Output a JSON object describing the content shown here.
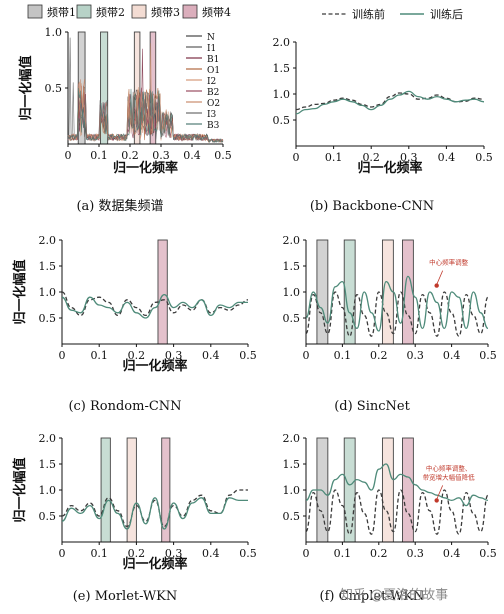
{
  "figure": {
    "watermark": "知乎 @夏洛的故事"
  },
  "legends": {
    "bands": [
      "频带1",
      "频带2",
      "频带3",
      "频带4"
    ],
    "training": [
      "训练前",
      "训练后"
    ],
    "dataset": [
      "N",
      "I1",
      "B1",
      "O1",
      "I2",
      "B2",
      "O2",
      "I3",
      "B3"
    ]
  },
  "colors": {
    "band1": "#8a8a8a",
    "band2": "#6fa58f",
    "band3": "#e8b9a7",
    "band4": "#b75d7a",
    "before": "#3b3b3b",
    "after": "#4f8b7a",
    "annotation": "#c0392b"
  },
  "chart_data": [
    {
      "type": "area",
      "id": "a",
      "caption": "(a) 数据集频谱",
      "xlabel": "归一化频率",
      "ylabel": "归一化幅值",
      "xlim": [
        0,
        0.5
      ],
      "ylim": [
        0,
        1.0
      ],
      "xticks": [
        0,
        0.1,
        0.2,
        0.3,
        0.4,
        0.5
      ],
      "xtick_labels": [
        "0",
        "0.1",
        "0.2",
        "0.3",
        "0.4",
        "0.5"
      ],
      "yticks": [
        0.5,
        1.0
      ],
      "ytick_labels": [
        "0.5",
        "1.0"
      ],
      "bands": [
        {
          "name": "频带1",
          "range": [
            0.033,
            0.055
          ]
        },
        {
          "name": "频带2",
          "range": [
            0.105,
            0.128
          ]
        },
        {
          "name": "频带3",
          "range": [
            0.214,
            0.232
          ]
        },
        {
          "name": "频带4",
          "range": [
            0.265,
            0.283
          ]
        }
      ],
      "series": [
        {
          "name": "N",
          "color": "#444444"
        },
        {
          "name": "I1",
          "color": "#5a5a5a"
        },
        {
          "name": "B1",
          "color": "#7b2d43"
        },
        {
          "name": "O1",
          "color": "#b0663e"
        },
        {
          "name": "I2",
          "color": "#d59a79"
        },
        {
          "name": "B2",
          "color": "#9a4d60"
        },
        {
          "name": "O2",
          "color": "#c98b6c"
        },
        {
          "name": "I3",
          "color": "#6a6a6a"
        },
        {
          "name": "B3",
          "color": "#4f7c74"
        }
      ]
    },
    {
      "type": "line",
      "id": "b",
      "caption": "(b) Backbone-CNN",
      "xlabel": "归一化频率",
      "ylabel": "",
      "xlim": [
        0,
        0.5
      ],
      "ylim": [
        0,
        2.0
      ],
      "xticks": [
        0,
        0.1,
        0.2,
        0.3,
        0.4,
        0.5
      ],
      "xtick_labels": [
        "0",
        "0.1",
        "0.2",
        "0.3",
        "0.4",
        "0.5"
      ],
      "yticks": [
        0.5,
        1.0,
        1.5,
        2.0
      ],
      "ytick_labels": [
        "0.5",
        "1.0",
        "1.5",
        "2.0"
      ],
      "bands": [],
      "x": [
        0,
        0.025,
        0.05,
        0.075,
        0.1,
        0.125,
        0.15,
        0.175,
        0.2,
        0.225,
        0.25,
        0.275,
        0.3,
        0.325,
        0.35,
        0.375,
        0.4,
        0.425,
        0.45,
        0.475,
        0.5
      ],
      "series": [
        {
          "name": "训练前",
          "style": "dashed",
          "values": [
            0.7,
            0.75,
            0.8,
            0.82,
            0.88,
            0.92,
            0.88,
            0.8,
            0.75,
            0.8,
            0.95,
            1.02,
            1.0,
            0.9,
            0.92,
            0.98,
            0.92,
            0.85,
            0.86,
            0.92,
            0.9
          ]
        },
        {
          "name": "训练后",
          "style": "solid",
          "values": [
            0.62,
            0.7,
            0.72,
            0.8,
            0.85,
            0.9,
            0.85,
            0.78,
            0.7,
            0.78,
            0.9,
            0.98,
            1.05,
            0.95,
            0.9,
            0.95,
            0.9,
            0.85,
            0.88,
            0.9,
            0.85
          ]
        }
      ]
    },
    {
      "type": "line",
      "id": "c",
      "caption": "(c) Rondom-CNN",
      "xlabel": "归一化频率",
      "ylabel": "归一化幅值",
      "xlim": [
        0,
        0.5
      ],
      "ylim": [
        0,
        2.0
      ],
      "xticks": [
        0,
        0.1,
        0.2,
        0.3,
        0.4,
        0.5
      ],
      "xtick_labels": [
        "0",
        "0.1",
        "0.2",
        "0.3",
        "0.4",
        "0.5"
      ],
      "yticks": [
        0.5,
        1.0,
        1.5,
        2.0
      ],
      "ytick_labels": [
        "0.5",
        "1.0",
        "1.5",
        "2.0"
      ],
      "bands": [
        {
          "name": "频带4",
          "range": [
            0.258,
            0.283
          ]
        }
      ],
      "x": [
        0,
        0.025,
        0.05,
        0.075,
        0.1,
        0.125,
        0.15,
        0.175,
        0.2,
        0.225,
        0.25,
        0.275,
        0.3,
        0.325,
        0.35,
        0.375,
        0.4,
        0.425,
        0.45,
        0.475,
        0.5
      ],
      "series": [
        {
          "name": "训练前",
          "style": "dashed",
          "values": [
            1.0,
            0.7,
            0.55,
            0.85,
            0.9,
            0.8,
            0.55,
            0.85,
            0.7,
            0.55,
            0.8,
            0.85,
            0.6,
            0.75,
            0.65,
            0.85,
            0.6,
            0.7,
            0.65,
            0.75,
            0.85
          ]
        },
        {
          "name": "训练后",
          "style": "solid",
          "values": [
            0.9,
            0.65,
            0.6,
            0.9,
            0.75,
            0.7,
            0.6,
            0.8,
            0.6,
            0.5,
            0.7,
            0.95,
            0.7,
            0.8,
            0.7,
            0.85,
            0.55,
            0.75,
            0.7,
            0.8,
            0.8
          ]
        }
      ]
    },
    {
      "type": "line",
      "id": "d",
      "caption": "(d) SincNet",
      "xlabel": "",
      "ylabel": "",
      "xlim": [
        0,
        0.5
      ],
      "ylim": [
        0,
        2.0
      ],
      "xticks": [
        0,
        0.1,
        0.2,
        0.3,
        0.4,
        0.5
      ],
      "xtick_labels": [
        "0",
        "0.1",
        "0.2",
        "0.3",
        "0.4",
        "0.5"
      ],
      "yticks": [
        0.5,
        1.0,
        1.5,
        2.0
      ],
      "ytick_labels": [
        "0.5",
        "1.0",
        "1.5",
        "2.0"
      ],
      "bands": [
        {
          "name": "频带1",
          "range": [
            0.03,
            0.06
          ]
        },
        {
          "name": "频带2",
          "range": [
            0.105,
            0.135
          ]
        },
        {
          "name": "频带3",
          "range": [
            0.21,
            0.24
          ]
        },
        {
          "name": "频带4",
          "range": [
            0.265,
            0.295
          ]
        }
      ],
      "annotation": {
        "text": "中心频率调整",
        "x": 0.37,
        "y": 1.45
      },
      "x": [
        0,
        0.02,
        0.04,
        0.06,
        0.08,
        0.1,
        0.12,
        0.14,
        0.16,
        0.18,
        0.2,
        0.22,
        0.24,
        0.26,
        0.28,
        0.3,
        0.32,
        0.34,
        0.36,
        0.38,
        0.4,
        0.42,
        0.44,
        0.46,
        0.48,
        0.5
      ],
      "series": [
        {
          "name": "训练前",
          "style": "dashed",
          "values": [
            0.2,
            0.95,
            0.6,
            0.2,
            1.0,
            0.7,
            0.15,
            0.95,
            0.55,
            0.15,
            1.0,
            0.6,
            0.2,
            1.0,
            0.55,
            0.2,
            0.95,
            0.6,
            0.15,
            1.0,
            0.6,
            0.15,
            0.95,
            0.55,
            0.2,
            0.9
          ]
        },
        {
          "name": "训练后",
          "style": "solid",
          "values": [
            0.5,
            1.0,
            0.7,
            0.4,
            1.1,
            1.2,
            0.6,
            0.3,
            1.0,
            0.6,
            0.25,
            1.2,
            1.0,
            0.4,
            1.3,
            0.9,
            0.3,
            1.0,
            0.8,
            0.3,
            1.0,
            0.9,
            0.3,
            1.0,
            0.6,
            0.3
          ]
        }
      ]
    },
    {
      "type": "line",
      "id": "e",
      "caption": "(e) Morlet-WKN",
      "xlabel": "归一化频率",
      "ylabel": "归一化幅值",
      "xlim": [
        0,
        0.5
      ],
      "ylim": [
        0,
        2.0
      ],
      "xticks": [
        0,
        0.1,
        0.2,
        0.3,
        0.4,
        0.5
      ],
      "xtick_labels": [
        "0",
        "0.1",
        "0.2",
        "0.3",
        "0.4",
        "0.5"
      ],
      "yticks": [
        0.5,
        1.0,
        1.5,
        2.0
      ],
      "ytick_labels": [
        "0.5",
        "1.0",
        "1.5",
        "2.0"
      ],
      "bands": [
        {
          "name": "频带2",
          "range": [
            0.105,
            0.13
          ]
        },
        {
          "name": "频带3",
          "range": [
            0.175,
            0.2
          ]
        },
        {
          "name": "频带4",
          "range": [
            0.268,
            0.29
          ]
        }
      ],
      "x": [
        0,
        0.025,
        0.05,
        0.075,
        0.1,
        0.125,
        0.15,
        0.175,
        0.2,
        0.225,
        0.25,
        0.275,
        0.3,
        0.325,
        0.35,
        0.375,
        0.4,
        0.425,
        0.45,
        0.475,
        0.5
      ],
      "series": [
        {
          "name": "训练前",
          "style": "dashed",
          "values": [
            0.5,
            0.7,
            0.6,
            0.75,
            0.5,
            0.85,
            0.6,
            0.3,
            0.7,
            0.4,
            0.8,
            0.3,
            0.7,
            0.5,
            0.8,
            0.9,
            0.6,
            0.55,
            0.9,
            1.0,
            1.0
          ]
        },
        {
          "name": "训练后",
          "style": "solid",
          "values": [
            0.4,
            0.65,
            0.55,
            0.7,
            0.45,
            0.8,
            0.55,
            0.25,
            0.75,
            0.35,
            0.85,
            0.25,
            0.75,
            0.45,
            0.75,
            0.85,
            0.55,
            0.55,
            0.85,
            0.8,
            0.8
          ]
        }
      ]
    },
    {
      "type": "line",
      "id": "f",
      "caption": "(f) Cmplet-WKN",
      "xlabel": "",
      "ylabel": "",
      "xlim": [
        0,
        0.5
      ],
      "ylim": [
        0,
        2.0
      ],
      "xticks": [
        0,
        0.1,
        0.2,
        0.3,
        0.4,
        0.5
      ],
      "xtick_labels": [
        "0",
        "0.1",
        "0.2",
        "0.3",
        "0.4",
        "0.5"
      ],
      "yticks": [
        0.5,
        1.0,
        1.5,
        2.0
      ],
      "ytick_labels": [
        "0.5",
        "1.0",
        "1.5",
        "2.0"
      ],
      "bands": [
        {
          "name": "频带1",
          "range": [
            0.03,
            0.06
          ]
        },
        {
          "name": "频带2",
          "range": [
            0.105,
            0.135
          ]
        },
        {
          "name": "频带3",
          "range": [
            0.21,
            0.24
          ]
        },
        {
          "name": "频带4",
          "range": [
            0.265,
            0.295
          ]
        }
      ],
      "annotation": {
        "text": "中心频率调整、带宽增大幅值降低",
        "x": 0.37,
        "y": 1.3
      },
      "x": [
        0,
        0.02,
        0.04,
        0.06,
        0.08,
        0.1,
        0.12,
        0.14,
        0.16,
        0.18,
        0.2,
        0.22,
        0.24,
        0.26,
        0.28,
        0.3,
        0.32,
        0.34,
        0.36,
        0.38,
        0.4,
        0.42,
        0.44,
        0.46,
        0.48,
        0.5
      ],
      "series": [
        {
          "name": "训练前",
          "style": "dashed",
          "values": [
            0.2,
            0.95,
            0.6,
            0.2,
            1.0,
            0.7,
            0.15,
            0.95,
            0.55,
            0.15,
            1.0,
            0.6,
            0.2,
            1.0,
            0.55,
            0.2,
            0.95,
            0.6,
            0.15,
            1.0,
            0.6,
            0.15,
            0.95,
            0.55,
            0.2,
            0.9
          ]
        },
        {
          "name": "训练后",
          "style": "solid",
          "values": [
            0.8,
            1.0,
            1.0,
            0.9,
            1.2,
            1.3,
            1.1,
            1.2,
            1.15,
            1.0,
            1.4,
            1.5,
            1.2,
            1.3,
            1.25,
            1.1,
            1.0,
            0.95,
            0.9,
            0.85,
            0.8,
            0.85,
            0.7,
            0.9,
            0.85,
            0.8
          ]
        }
      ]
    }
  ]
}
